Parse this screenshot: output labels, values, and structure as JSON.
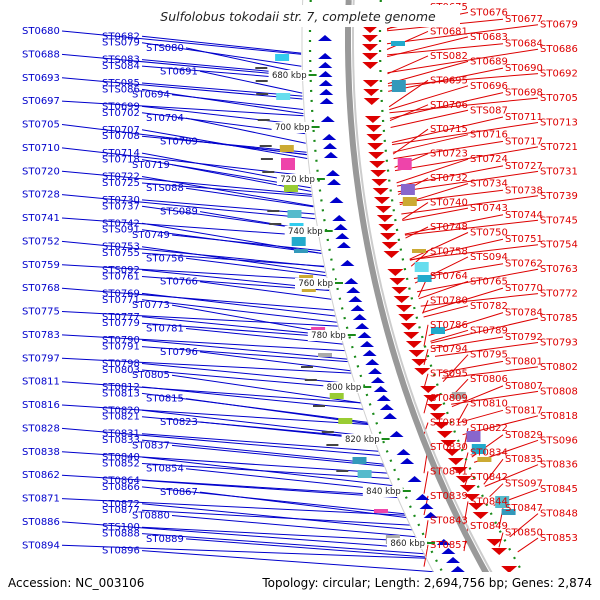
{
  "title": "Sulfolobus tokodaii str. 7, complete genome",
  "footer": {
    "accession": "Accession: NC_003106",
    "summary": "Topology: circular; Length: 2,694,756 bp; Genes: 2,874"
  },
  "colors": {
    "forward": "#0000cc",
    "reverse": "#dd0000",
    "backbone": "#999999",
    "ruler": "#1a8a1a"
  },
  "kbp_marks": [
    "680 kbp",
    "700 kbp",
    "720 kbp",
    "740 kbp",
    "760 kbp",
    "780 kbp",
    "800 kbp",
    "820 kbp",
    "840 kbp",
    "860 kbp"
  ],
  "left_genes": [
    "ST0680",
    "ST0682",
    "STS079",
    "STS080",
    "ST0688",
    "STS083",
    "STS084",
    "ST0691",
    "ST0693",
    "STS085",
    "STS086",
    "ST0694",
    "ST0697",
    "ST0699",
    "ST0702",
    "ST0704",
    "ST0705",
    "ST0707",
    "ST0708",
    "ST0709",
    "ST0710",
    "ST0714",
    "ST0718",
    "ST0719",
    "ST0720",
    "ST0722",
    "ST0725",
    "STS088",
    "ST0728",
    "ST0730",
    "ST0737",
    "STS089",
    "ST0741",
    "ST0742",
    "STS091",
    "ST0749",
    "ST0752",
    "ST0753",
    "ST0755",
    "ST0756",
    "ST0759",
    "STS092",
    "ST0761",
    "ST0766",
    "ST0768",
    "ST0769",
    "ST0771",
    "ST0773",
    "ST0775",
    "ST0777",
    "ST0779",
    "ST0781",
    "ST0783",
    "ST0790",
    "ST0791",
    "ST0796",
    "ST0797",
    "ST0798",
    "ST0803",
    "ST0805",
    "ST0811",
    "ST0812",
    "ST0813",
    "ST0815",
    "ST0816",
    "ST0820",
    "ST0821",
    "ST0823",
    "ST0828",
    "ST0831",
    "ST0833",
    "ST0837",
    "ST0838",
    "ST0840",
    "ST0852",
    "ST0854",
    "ST0862",
    "ST0864",
    "ST0866",
    "ST0867",
    "ST0871",
    "ST0872",
    "ST0877",
    "ST0880",
    "ST0886",
    "STS100",
    "ST0888",
    "ST0889",
    "ST0894",
    "ST0896"
  ],
  "right_genes": [
    "ST0675",
    "ST0676",
    "ST0677",
    "ST0679",
    "ST0681",
    "ST0683",
    "ST0684",
    "ST0686",
    "STS082",
    "ST0689",
    "ST0690",
    "ST0692",
    "ST0695",
    "ST0696",
    "ST0698",
    "ST0705",
    "ST0706",
    "STS087",
    "ST0711",
    "ST0713",
    "ST0715",
    "ST0716",
    "ST0717",
    "ST0721",
    "ST0723",
    "ST0724",
    "ST0727",
    "ST0731",
    "ST0732",
    "ST0734",
    "ST0738",
    "ST0739",
    "ST0740",
    "ST0743",
    "ST0744",
    "ST0745",
    "ST0748",
    "ST0750",
    "ST0751",
    "ST0754",
    "ST0758",
    "STS094",
    "ST0762",
    "ST0763",
    "ST0764",
    "ST0765",
    "ST0770",
    "ST0772",
    "ST0780",
    "ST0782",
    "ST0784",
    "ST0785",
    "ST0786",
    "ST0789",
    "ST0792",
    "ST0793",
    "ST0794",
    "ST0795",
    "ST0801",
    "ST0802",
    "STS095",
    "ST0806",
    "ST0807",
    "ST0808",
    "ST0809",
    "ST0810",
    "ST0817",
    "ST0818",
    "ST0819",
    "ST0822",
    "ST0829",
    "STS096",
    "ST0830",
    "ST0834",
    "ST0835",
    "ST0836",
    "ST0841",
    "ST0842",
    "STS097",
    "ST0845",
    "ST0839",
    "ST0844",
    "ST0847",
    "ST0848",
    "ST0843",
    "ST0849",
    "ST0850",
    "ST0853",
    "ST0857"
  ]
}
